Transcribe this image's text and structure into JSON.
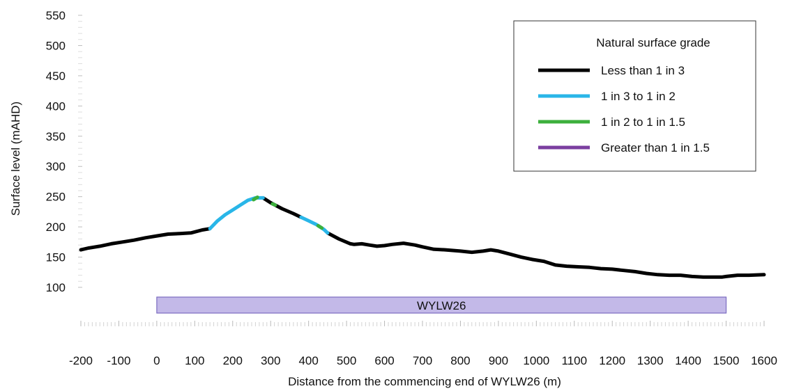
{
  "chart_data": {
    "type": "line",
    "title": "",
    "xlabel": "Distance from the commencing end of WYLW26 (m)",
    "ylabel": "Surface level (mAHD)",
    "xlim": [
      -200,
      1600
    ],
    "ylim": [
      100,
      550
    ],
    "x_ticks": [
      "-200",
      "-100",
      "0",
      "100",
      "200",
      "300",
      "400",
      "500",
      "600",
      "700",
      "800",
      "900",
      "1000",
      "1100",
      "1200",
      "1300",
      "1400",
      "1500",
      "1600"
    ],
    "y_ticks": [
      "550",
      "500",
      "450",
      "400",
      "350",
      "300",
      "250",
      "200",
      "150",
      "100"
    ],
    "legend": {
      "title": "Natural surface grade",
      "position": "top-right",
      "entries": [
        {
          "label": "Less than 1 in 3",
          "color": "#000000"
        },
        {
          "label": "1 in 3 to 1 in 2",
          "color": "#29b6e8"
        },
        {
          "label": "1 in 2 to 1 in 1.5",
          "color": "#3cb03c"
        },
        {
          "label": "Greater than 1 in 1.5",
          "color": "#7b3fa0"
        }
      ]
    },
    "series": [
      {
        "color": "#000000",
        "segments": [
          [
            [
              -200,
              162
            ],
            [
              -180,
              165
            ],
            [
              -150,
              168
            ],
            [
              -120,
              172
            ],
            [
              -90,
              175
            ],
            [
              -60,
              178
            ],
            [
              -30,
              182
            ],
            [
              0,
              185
            ],
            [
              30,
              188
            ],
            [
              60,
              189
            ],
            [
              90,
              190
            ],
            [
              120,
              195
            ],
            [
              140,
              197
            ]
          ],
          [
            [
              280,
              248
            ],
            [
              300,
              240
            ],
            [
              330,
              230
            ],
            [
              360,
              222
            ],
            [
              380,
              216
            ]
          ],
          [
            [
              450,
              190
            ],
            [
              480,
              180
            ],
            [
              510,
              172
            ],
            [
              520,
              171
            ],
            [
              540,
              172
            ],
            [
              560,
              170
            ],
            [
              580,
              168
            ],
            [
              600,
              169
            ],
            [
              620,
              171
            ],
            [
              650,
              173
            ],
            [
              680,
              170
            ],
            [
              700,
              167
            ],
            [
              730,
              163
            ],
            [
              760,
              162
            ],
            [
              800,
              160
            ],
            [
              830,
              158
            ],
            [
              860,
              160
            ],
            [
              880,
              162
            ],
            [
              900,
              160
            ],
            [
              930,
              155
            ],
            [
              960,
              150
            ],
            [
              990,
              146
            ],
            [
              1020,
              143
            ],
            [
              1050,
              137
            ],
            [
              1080,
              135
            ],
            [
              1110,
              134
            ],
            [
              1140,
              133
            ],
            [
              1170,
              131
            ],
            [
              1200,
              130
            ],
            [
              1230,
              128
            ],
            [
              1260,
              126
            ],
            [
              1290,
              123
            ],
            [
              1320,
              121
            ],
            [
              1350,
              120
            ],
            [
              1380,
              120
            ],
            [
              1410,
              118
            ],
            [
              1440,
              117
            ],
            [
              1470,
              117
            ],
            [
              1490,
              117
            ],
            [
              1500,
              118
            ],
            [
              1530,
              120
            ],
            [
              1560,
              120
            ],
            [
              1600,
              121
            ]
          ]
        ]
      },
      {
        "color": "#29b6e8",
        "segments": [
          [
            [
              140,
              197
            ],
            [
              160,
              210
            ],
            [
              180,
              220
            ],
            [
              200,
              228
            ],
            [
              220,
              236
            ],
            [
              240,
              244
            ],
            [
              260,
              248
            ],
            [
              280,
              248
            ]
          ],
          [
            [
              380,
              216
            ],
            [
              400,
              210
            ],
            [
              420,
              204
            ],
            [
              440,
              196
            ],
            [
              450,
              190
            ]
          ]
        ]
      },
      {
        "color": "#3cb03c",
        "segments": [
          [
            [
              255,
              245
            ],
            [
              265,
              249
            ]
          ],
          [
            [
              305,
              238
            ],
            [
              312,
              236
            ]
          ],
          [
            [
              425,
              202
            ],
            [
              435,
              198
            ]
          ]
        ]
      }
    ],
    "annotation": {
      "label": "WYLW26",
      "x_start": 0,
      "x_end": 1500,
      "fill": "#c3b9e8",
      "stroke": "#7b6cc0"
    }
  }
}
